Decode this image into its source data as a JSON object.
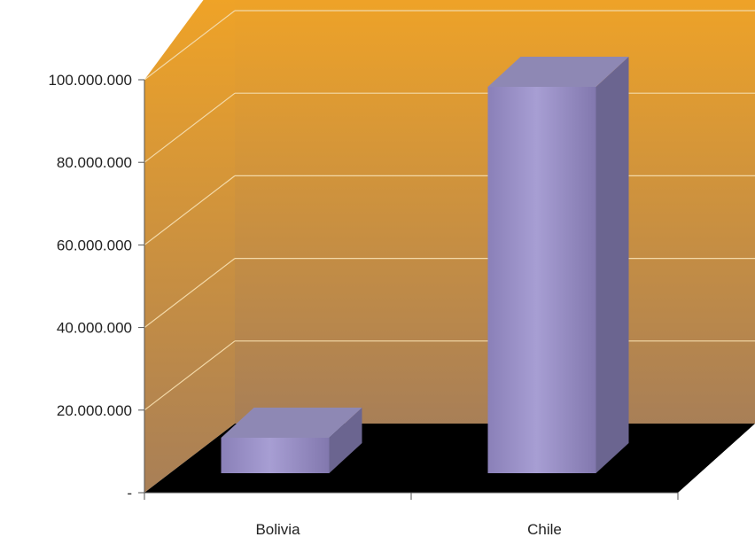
{
  "chart_data": {
    "type": "bar",
    "three_d": true,
    "title": "",
    "xlabel": "",
    "ylabel": "",
    "categories": [
      "Bolivia",
      "Chile"
    ],
    "values": [
      2000000,
      94000000
    ],
    "ylim": [
      0,
      100000000
    ],
    "yticks": [
      0,
      20000000,
      40000000,
      60000000,
      80000000,
      100000000
    ],
    "ytick_labels": [
      "-",
      "20.000.000",
      "40.000.000",
      "60.000.000",
      "80.000.000",
      "100.000.000"
    ],
    "grid": true,
    "legend": "none",
    "colors": {
      "wall_top": "#f5a623",
      "wall_bottom": "#a87f57",
      "floor": "#000000",
      "bar_front": "#9a90c8",
      "bar_top": "#8e88b4",
      "bar_side": "#6b6590",
      "gridline": "#f3d9a8"
    }
  }
}
